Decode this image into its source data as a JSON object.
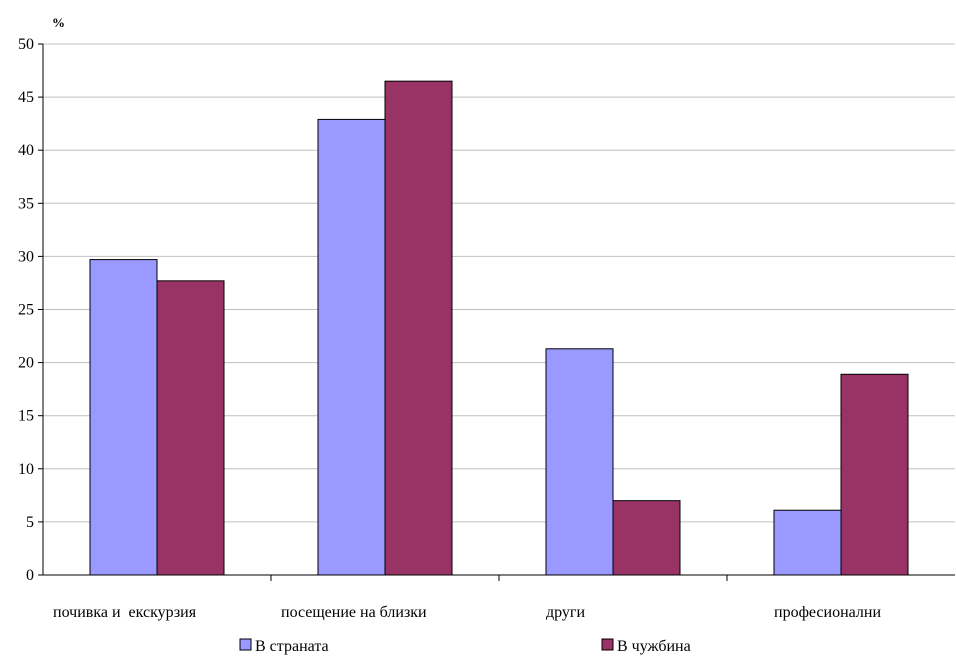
{
  "chart_data": {
    "type": "bar",
    "y_unit": "%",
    "categories": [
      "почивка и  екскурзия",
      "посещение на близки",
      "други",
      "професионални"
    ],
    "series": [
      {
        "name": "В страната",
        "values": [
          29.7,
          42.9,
          21.3,
          6.1
        ]
      },
      {
        "name": "В чужбина",
        "values": [
          27.7,
          46.5,
          7.0,
          18.9
        ]
      }
    ],
    "ylim": [
      0,
      50
    ],
    "yticks": [
      0,
      5,
      10,
      15,
      20,
      25,
      30,
      35,
      40,
      45,
      50
    ],
    "grid": true,
    "legend_position": "bottom"
  },
  "colors": {
    "series_1": "#9999ff",
    "series_2": "#993366",
    "grid": "#c0c0c0",
    "axis": "#000000"
  }
}
